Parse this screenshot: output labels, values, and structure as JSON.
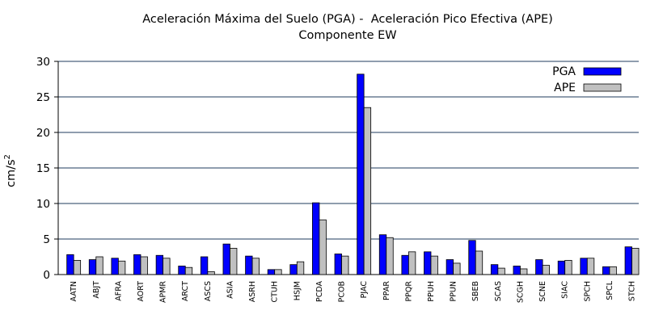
{
  "chart_data": {
    "type": "bar",
    "title": "Aceleración Máxima del Suelo (PGA) -  Aceleración Pico Efectiva (APE)",
    "subtitle": "Componente EW",
    "xlabel": "",
    "ylabel": "cm/s2",
    "ylabel_base": "cm/s",
    "ylabel_exp": "2",
    "ylim": [
      0,
      30
    ],
    "yticks": [
      0,
      5,
      10,
      15,
      20,
      25,
      30
    ],
    "grid": true,
    "legend_position": "top-right",
    "categories": [
      "AATN",
      "ABJT",
      "AFRA",
      "AORT",
      "APMR",
      "ARCT",
      "ASCS",
      "ASIA",
      "ASRH",
      "CTUH",
      "HSJM",
      "PCDA",
      "PCOB",
      "PJAC",
      "PPAR",
      "PPQR",
      "PPUH",
      "PPUN",
      "SBEB",
      "SCAS",
      "SCGH",
      "SCNE",
      "SIAC",
      "SPCH",
      "SPCL",
      "STCH"
    ],
    "series": [
      {
        "name": "PGA",
        "color": "#0000ff",
        "values": [
          2.8,
          2.1,
          2.3,
          2.8,
          2.7,
          1.2,
          2.5,
          4.3,
          2.6,
          0.7,
          1.4,
          10.1,
          2.9,
          28.2,
          5.6,
          2.7,
          3.2,
          2.1,
          4.8,
          1.4,
          1.2,
          2.1,
          1.9,
          2.3,
          1.1,
          3.9
        ]
      },
      {
        "name": "APE",
        "color": "#c0c0c0",
        "values": [
          2.0,
          2.5,
          1.9,
          2.5,
          2.3,
          1.0,
          0.4,
          3.7,
          2.3,
          0.7,
          1.8,
          7.7,
          2.6,
          23.5,
          5.2,
          3.2,
          2.6,
          1.6,
          3.3,
          0.9,
          0.8,
          1.3,
          2.0,
          2.3,
          1.1,
          3.7
        ]
      }
    ]
  }
}
